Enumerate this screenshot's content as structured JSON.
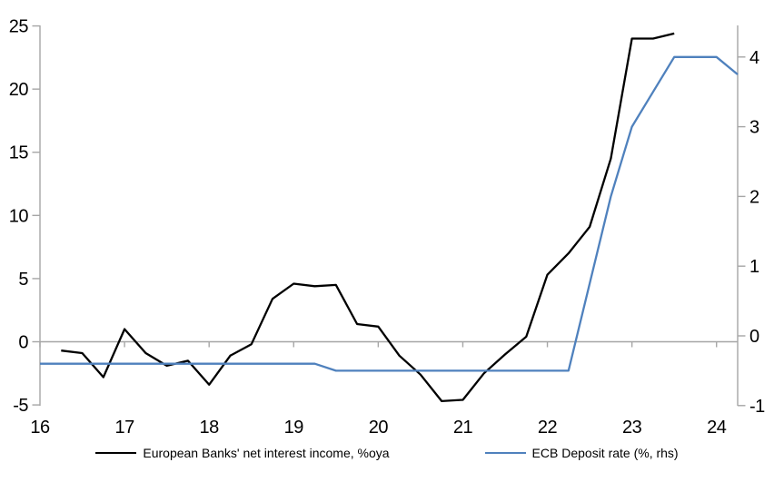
{
  "chart_data": {
    "type": "line",
    "x_axis": {
      "ticks": [
        16,
        17,
        18,
        19,
        20,
        21,
        22,
        23,
        24
      ],
      "range": [
        16,
        24.25
      ]
    },
    "left_axis": {
      "ticks": [
        25,
        20,
        15,
        10,
        5,
        0,
        -5
      ],
      "range": [
        -5,
        25
      ]
    },
    "right_axis": {
      "ticks": [
        4,
        3,
        2,
        1,
        0,
        -1
      ],
      "range": [
        -1,
        4.45
      ]
    },
    "grid": "zero-line-only",
    "legend_position": "bottom",
    "axis_color": "#a6a6a6",
    "series": [
      {
        "name": "European Banks' net interest income, %oya",
        "axis": "left",
        "color": "#000000",
        "points": [
          [
            16.25,
            -0.7
          ],
          [
            16.5,
            -0.9
          ],
          [
            16.75,
            -2.8
          ],
          [
            17.0,
            1.0
          ],
          [
            17.25,
            -0.9
          ],
          [
            17.5,
            -1.9
          ],
          [
            17.75,
            -1.5
          ],
          [
            18.0,
            -3.4
          ],
          [
            18.25,
            -1.1
          ],
          [
            18.5,
            -0.2
          ],
          [
            18.75,
            3.4
          ],
          [
            19.0,
            4.6
          ],
          [
            19.25,
            4.4
          ],
          [
            19.5,
            4.5
          ],
          [
            19.75,
            1.4
          ],
          [
            20.0,
            1.2
          ],
          [
            20.25,
            -1.1
          ],
          [
            20.5,
            -2.6
          ],
          [
            20.75,
            -4.7
          ],
          [
            21.0,
            -4.6
          ],
          [
            21.25,
            -2.5
          ],
          [
            21.5,
            -1.0
          ],
          [
            21.75,
            0.4
          ],
          [
            22.0,
            5.3
          ],
          [
            22.25,
            7.0
          ],
          [
            22.5,
            9.1
          ],
          [
            22.75,
            14.5
          ],
          [
            23.0,
            24.0
          ],
          [
            23.25,
            24.0
          ],
          [
            23.5,
            24.4
          ]
        ]
      },
      {
        "name": "ECB Deposit rate (%, rhs)",
        "axis": "right",
        "color": "#4f81bd",
        "points": [
          [
            16.0,
            -0.4
          ],
          [
            16.25,
            -0.4
          ],
          [
            16.5,
            -0.4
          ],
          [
            16.75,
            -0.4
          ],
          [
            17.0,
            -0.4
          ],
          [
            17.25,
            -0.4
          ],
          [
            17.5,
            -0.4
          ],
          [
            17.75,
            -0.4
          ],
          [
            18.0,
            -0.4
          ],
          [
            18.25,
            -0.4
          ],
          [
            18.5,
            -0.4
          ],
          [
            18.75,
            -0.4
          ],
          [
            19.0,
            -0.4
          ],
          [
            19.25,
            -0.4
          ],
          [
            19.5,
            -0.5
          ],
          [
            19.75,
            -0.5
          ],
          [
            20.0,
            -0.5
          ],
          [
            20.25,
            -0.5
          ],
          [
            20.5,
            -0.5
          ],
          [
            20.75,
            -0.5
          ],
          [
            21.0,
            -0.5
          ],
          [
            21.25,
            -0.5
          ],
          [
            21.5,
            -0.5
          ],
          [
            21.75,
            -0.5
          ],
          [
            22.0,
            -0.5
          ],
          [
            22.25,
            -0.5
          ],
          [
            22.5,
            0.75
          ],
          [
            22.75,
            2.0
          ],
          [
            23.0,
            3.0
          ],
          [
            23.25,
            3.5
          ],
          [
            23.5,
            4.0
          ],
          [
            23.75,
            4.0
          ],
          [
            24.0,
            4.0
          ],
          [
            24.25,
            3.75
          ]
        ]
      }
    ]
  }
}
